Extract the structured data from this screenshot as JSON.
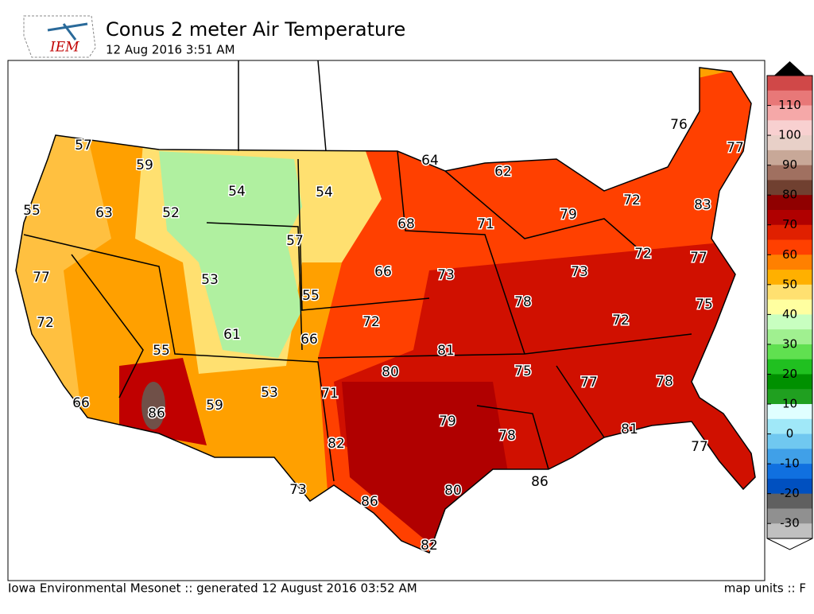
{
  "header": {
    "logo": "IEM",
    "title": "Conus 2 meter Air Temperature",
    "subtitle": "12 Aug 2016 3:51 AM"
  },
  "stations": [
    57,
    59,
    55,
    63,
    52,
    54,
    54,
    57,
    64,
    62,
    68,
    71,
    79,
    72,
    83,
    76,
    77,
    77,
    53,
    66,
    73,
    78,
    73,
    72,
    77,
    75,
    55,
    72,
    61,
    66,
    72,
    81,
    72,
    55,
    80,
    75,
    77,
    78,
    53,
    71,
    66,
    86,
    59,
    79,
    78,
    81,
    82,
    77,
    86,
    73,
    80,
    86,
    82
  ],
  "colorbar": {
    "clim": [
      -35,
      120
    ],
    "ticks": [
      110,
      100,
      90,
      80,
      70,
      60,
      50,
      40,
      30,
      20,
      10,
      0,
      -10,
      -20,
      -30
    ],
    "colors": [
      "#d04848",
      "#e87878",
      "#f5a8a8",
      "#f8d0d0",
      "#e8d0c8",
      "#c8a898",
      "#a07060",
      "#704030",
      "#900000",
      "#b00000",
      "#e02000",
      "#ff4000",
      "#ff8000",
      "#ffb000",
      "#ffe070",
      "#ffffa0",
      "#c8ffc0",
      "#a0f090",
      "#60e050",
      "#20c020",
      "#009000",
      "#20a020",
      "#e0ffff",
      "#a0e8f8",
      "#70c8f0",
      "#40a0e8",
      "#1070e0",
      "#0050c0",
      "#606060",
      "#909090",
      "#c0c0c0"
    ]
  },
  "footer": {
    "left": "Iowa Environmental Mesonet :: generated 12 August 2016 03:52 AM",
    "right": "map units :: F"
  }
}
